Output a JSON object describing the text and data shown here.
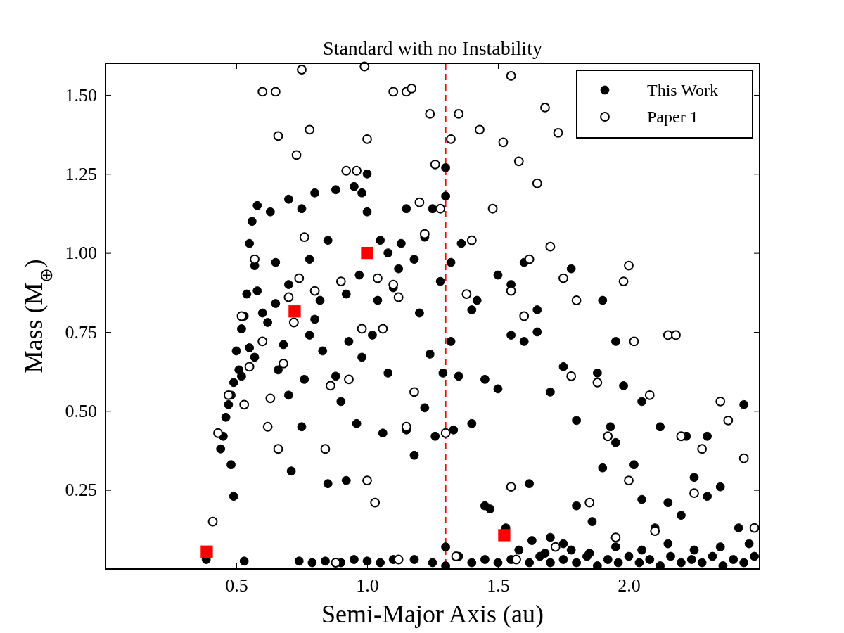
{
  "chart_data": {
    "type": "scatter",
    "title": "Standard with no Instability",
    "xlabel": "Semi-Major Axis (au)",
    "ylabel": "Mass (M$_{⊕}$)",
    "xlim": [
      0,
      2.5
    ],
    "ylim": [
      0,
      1.6
    ],
    "xticks": [
      {
        "value": 0.5,
        "label": "0.5"
      },
      {
        "value": 1,
        "label": "1.0"
      },
      {
        "value": 1.5,
        "label": "1.5"
      },
      {
        "value": 2,
        "label": "2.0"
      }
    ],
    "yticks": [
      {
        "value": 0.25,
        "label": "0.25"
      },
      {
        "value": 0.5,
        "label": "0.50"
      },
      {
        "value": 0.75,
        "label": "0.75"
      },
      {
        "value": 1,
        "label": "1.00"
      },
      {
        "value": 1.25,
        "label": "1.25"
      },
      {
        "value": 1.5,
        "label": "1.50"
      }
    ],
    "grid": false,
    "legend": "top right",
    "marker": "circle",
    "ref_lines": [
      {
        "axis": "x",
        "value": 1.3,
        "color": "#ff0000",
        "line_style": "dashed"
      }
    ],
    "series": [
      {
        "name": "This Work",
        "color": "#000000",
        "x": [
          0.385,
          0.53,
          0.74,
          0.79,
          0.84,
          0.9,
          0.95,
          1.0,
          1.05,
          1.1,
          1.18,
          1.25,
          1.3,
          1.3,
          1.35,
          1.4,
          1.45,
          1.5,
          1.55,
          1.58,
          1.62,
          1.66,
          1.7,
          1.75,
          1.8,
          1.84,
          1.88,
          1.92,
          1.96,
          2.0,
          2.04,
          2.08,
          2.12,
          2.16,
          2.2,
          2.24,
          2.28,
          2.32,
          2.36,
          2.4,
          2.44,
          2.48,
          2.46,
          2.35,
          2.25,
          2.15,
          2.05,
          1.95,
          1.85,
          1.78,
          1.68,
          1.63,
          1.53,
          1.47,
          1.45,
          1.62,
          1.7,
          1.75,
          1.8,
          1.86,
          1.9,
          1.95,
          2.02,
          2.05,
          2.1,
          2.15,
          2.2,
          2.25,
          2.3,
          2.35,
          2.42,
          2.44,
          2.3,
          2.22,
          2.12,
          2.05,
          1.98,
          1.93,
          1.88,
          1.8,
          1.75,
          1.7,
          1.65,
          1.6,
          1.55,
          1.5,
          1.45,
          1.4,
          1.35,
          1.32,
          1.29,
          1.33,
          1.4,
          1.42,
          1.5,
          1.55,
          1.6,
          1.65,
          1.78,
          1.9,
          1.95,
          1.28,
          1.32,
          1.36,
          1.3,
          1.3,
          1.22,
          1.25,
          1.15,
          1.05,
          1.0,
          1.0,
          0.98,
          0.95,
          0.88,
          0.8,
          0.75,
          0.7,
          0.63,
          0.58,
          0.56,
          0.55,
          0.57,
          0.58,
          0.54,
          0.53,
          0.52,
          0.5,
          0.51,
          0.49,
          0.48,
          0.47,
          0.46,
          0.45,
          0.44,
          0.48,
          0.49,
          0.52,
          0.55,
          0.57,
          0.6,
          0.62,
          0.65,
          0.66,
          0.68,
          0.7,
          0.71,
          0.75,
          0.76,
          0.78,
          0.8,
          0.82,
          0.83,
          0.85,
          0.88,
          0.9,
          0.92,
          0.93,
          0.96,
          0.98,
          1.02,
          1.04,
          1.06,
          1.08,
          1.1,
          1.12,
          1.15,
          1.18,
          1.2,
          1.22,
          1.24,
          1.26,
          1.08,
          1.13,
          1.18,
          0.65,
          0.7,
          0.78,
          0.85,
          0.92,
          0.97
        ],
        "values": [
          0.03,
          0.025,
          0.025,
          0.02,
          0.025,
          0.02,
          0.03,
          0.025,
          0.02,
          0.03,
          0.03,
          0.02,
          0.01,
          0.07,
          0.04,
          0.02,
          0.03,
          0.02,
          0.03,
          0.06,
          0.02,
          0.04,
          0.02,
          0.03,
          0.02,
          0.04,
          0.01,
          0.03,
          0.02,
          0.04,
          0.02,
          0.03,
          0.01,
          0.04,
          0.02,
          0.03,
          0.02,
          0.04,
          0.01,
          0.03,
          0.02,
          0.04,
          0.08,
          0.07,
          0.06,
          0.08,
          0.06,
          0.07,
          0.05,
          0.06,
          0.05,
          0.09,
          0.13,
          0.19,
          0.2,
          0.27,
          0.1,
          0.08,
          0.2,
          0.15,
          0.32,
          0.4,
          0.33,
          0.22,
          0.13,
          0.21,
          0.17,
          0.29,
          0.23,
          0.26,
          0.13,
          0.52,
          0.42,
          0.42,
          0.45,
          0.53,
          0.58,
          0.45,
          0.62,
          0.47,
          0.64,
          0.56,
          0.75,
          0.72,
          0.74,
          0.57,
          0.6,
          0.46,
          0.61,
          0.72,
          0.62,
          0.44,
          0.82,
          0.85,
          0.93,
          0.9,
          0.97,
          0.82,
          0.95,
          0.85,
          0.72,
          0.91,
          0.97,
          1.03,
          1.18,
          1.27,
          1.05,
          1.14,
          1.14,
          1.04,
          1.13,
          1.25,
          1.19,
          1.21,
          1.2,
          1.19,
          1.14,
          1.17,
          1.13,
          1.15,
          1.1,
          1.03,
          0.96,
          0.88,
          0.87,
          0.8,
          0.76,
          0.69,
          0.63,
          0.59,
          0.55,
          0.52,
          0.48,
          0.42,
          0.38,
          0.33,
          0.23,
          0.61,
          0.7,
          0.67,
          0.81,
          0.78,
          0.84,
          0.63,
          0.71,
          0.55,
          0.31,
          0.45,
          0.6,
          0.74,
          0.79,
          0.85,
          0.69,
          0.27,
          0.61,
          0.53,
          0.28,
          0.72,
          0.46,
          0.67,
          0.74,
          0.85,
          0.43,
          0.62,
          0.89,
          0.95,
          0.44,
          0.36,
          0.81,
          0.51,
          0.68,
          0.42,
          1.0,
          1.03,
          0.98,
          0.97,
          0.9,
          0.98,
          1.04,
          0.87,
          0.93
        ]
      },
      {
        "name": "Paper 1",
        "color": "#000000",
        "x": [
          0.41,
          0.43,
          0.47,
          0.53,
          0.55,
          0.52,
          0.57,
          0.6,
          0.63,
          0.62,
          0.66,
          0.68,
          0.7,
          0.72,
          0.74,
          0.76,
          0.8,
          0.84,
          0.86,
          0.9,
          0.93,
          0.96,
          0.98,
          1.0,
          1.03,
          1.04,
          1.06,
          1.1,
          1.12,
          1.15,
          1.18,
          1.2,
          1.22,
          1.24,
          1.26,
          1.28,
          1.3,
          1.32,
          1.38,
          1.4,
          1.43,
          1.48,
          1.52,
          1.55,
          1.58,
          1.6,
          1.62,
          1.65,
          1.68,
          1.7,
          1.73,
          1.75,
          1.78,
          1.8,
          1.85,
          1.88,
          1.92,
          1.98,
          2.0,
          2.02,
          2.08,
          2.15,
          2.18,
          2.2,
          2.28,
          2.35,
          2.38,
          2.44,
          2.48,
          2.25,
          2.1,
          2.0,
          1.95,
          0.6,
          0.65,
          0.66,
          0.75,
          0.73,
          0.78,
          0.92,
          0.99,
          1.0,
          1.1,
          1.15,
          1.17,
          1.55,
          1.35,
          0.88,
          1.12,
          1.34,
          1.57,
          1.72,
          1.55
        ],
        "values": [
          0.15,
          0.43,
          0.55,
          0.52,
          0.64,
          0.8,
          0.98,
          0.72,
          0.54,
          0.45,
          0.38,
          0.65,
          0.86,
          0.78,
          0.92,
          1.05,
          0.88,
          0.38,
          0.58,
          0.91,
          0.6,
          1.26,
          0.76,
          0.28,
          0.21,
          0.92,
          0.76,
          0.9,
          0.86,
          0.45,
          0.56,
          1.16,
          1.06,
          1.44,
          1.28,
          1.14,
          0.43,
          1.36,
          0.87,
          1.04,
          1.39,
          1.14,
          1.35,
          0.88,
          1.29,
          0.8,
          0.98,
          1.22,
          1.46,
          1.02,
          1.38,
          0.92,
          0.61,
          0.85,
          0.21,
          0.59,
          0.42,
          0.91,
          0.96,
          0.72,
          0.55,
          0.74,
          0.74,
          0.42,
          0.38,
          0.53,
          0.47,
          0.35,
          0.13,
          0.24,
          0.12,
          0.28,
          0.1,
          1.51,
          1.51,
          1.37,
          1.58,
          1.31,
          1.39,
          1.26,
          1.59,
          1.36,
          1.51,
          1.51,
          1.52,
          1.56,
          1.44,
          0.02,
          0.03,
          0.04,
          0.03,
          0.07,
          0.26
        ]
      },
      {
        "color": "#ff0000",
        "marker": "square",
        "x": [
          0.387,
          0.723,
          1.0,
          1.524
        ],
        "values": [
          0.055,
          0.815,
          1.0,
          0.107
        ]
      }
    ]
  }
}
